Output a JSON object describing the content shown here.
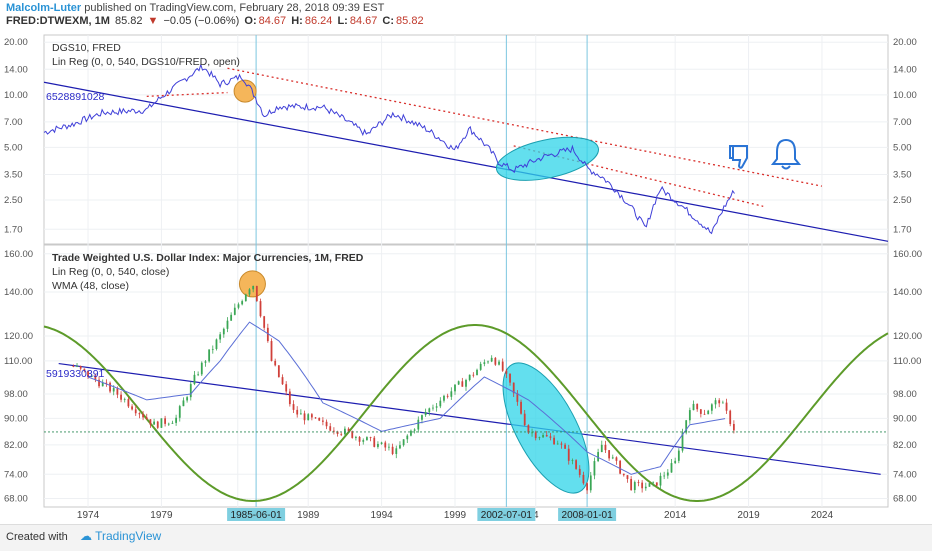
{
  "header": {
    "author": "Malcolm-Luter",
    "published": "published on TradingView.com, February 28, 2018 09:39 EST"
  },
  "ohlc": {
    "symbol": "FRED:DTWEXM, 1M",
    "last": "85.82",
    "change_arrow": "▼",
    "change": "−0.05 (−0.06%)",
    "o_label": "O:",
    "o": "84.67",
    "h_label": "H:",
    "h": "86.24",
    "l_label": "L:",
    "l": "84.67",
    "c_label": "C:",
    "c": "85.82"
  },
  "top_pane": {
    "indicators": [
      "DGS10, FRED",
      "Lin Reg (0, 0, 540, DGS10/FRED, open)"
    ],
    "lin_reg_value": "6528891028",
    "y_ticks": [
      "20.00",
      "14.00",
      "10.00",
      "7.00",
      "5.00",
      "3.50",
      "2.50",
      "1.70"
    ]
  },
  "bottom_pane": {
    "indicators": [
      "Trade Weighted U.S. Dollar Index: Major Currencies, 1M, FRED",
      "Lin Reg (0, 0, 540, close)",
      "WMA (48, close)"
    ],
    "lin_reg_value": "5919330391",
    "y_ticks": [
      "160.00",
      "140.00",
      "120.00",
      "110.00",
      "98.00",
      "90.00",
      "82.00",
      "74.00",
      "68.00"
    ]
  },
  "x_axis": {
    "ticks": [
      "1974",
      "1979",
      "1",
      "1989",
      "1994",
      "1999",
      "4",
      "2014",
      "2019",
      "2024"
    ],
    "highlights": [
      "1985-06-01",
      "2002-07-01",
      "2008-01-01"
    ]
  },
  "footer": {
    "made": "Created with",
    "brand": "TradingView"
  },
  "colors": {
    "price": "#3f3fd8",
    "regression": "#1d1db0",
    "sine": "#5d9b2a",
    "trend_dotted": "#d9302c",
    "ellipse_cyan": "#2fd4e8",
    "circle_orange": "#f5b65a",
    "vline": "#7cc6e0",
    "highlight_bg": "#7fcfe0"
  },
  "chart_data": [
    {
      "type": "line",
      "title": "DGS10, FRED",
      "scale": "log",
      "ylim": [
        1.4,
        22
      ],
      "x": [
        1971,
        1973,
        1975,
        1978,
        1980,
        1981.8,
        1983,
        1984.5,
        1986,
        1987,
        1990,
        1993,
        1994.8,
        1997,
        1999,
        2000,
        2002,
        2003,
        2005,
        2007,
        2008,
        2009,
        2012,
        2013,
        2015,
        2016.5,
        2017.5,
        2018.1
      ],
      "values": [
        6.1,
        6.8,
        7.9,
        8.2,
        11.2,
        14.5,
        11.5,
        12.8,
        7.6,
        8.6,
        8.5,
        5.9,
        7.8,
        6.4,
        4.8,
        6.4,
        4.1,
        3.7,
        4.4,
        4.9,
        3.8,
        3.4,
        1.7,
        2.9,
        2.1,
        1.6,
        2.4,
        2.87
      ]
    },
    {
      "type": "line",
      "title": "Trade Weighted U.S. Dollar Index: Major Currencies, 1M, FRED",
      "scale": "log",
      "ylim": [
        66,
        165
      ],
      "x": [
        1973,
        1976,
        1978.5,
        1980,
        1981.5,
        1983,
        1985.2,
        1986.5,
        1988,
        1990,
        1992,
        1995,
        1997,
        2000,
        2001.5,
        2002.3,
        2004,
        2006,
        2008,
        2009,
        2011,
        2012.5,
        2014,
        2015,
        2016,
        2017,
        2018.1
      ],
      "values": [
        108,
        98,
        88,
        90,
        106,
        120,
        145,
        110,
        92,
        88,
        85,
        80,
        92,
        104,
        112,
        106,
        86,
        83,
        71,
        82,
        71,
        71,
        77,
        94,
        92,
        96,
        86
      ],
      "series": [
        {
          "name": "WMA (48, close)",
          "x": [
            1974,
            1978,
            1981,
            1983,
            1985,
            1987,
            1990,
            1994,
            1998,
            2001,
            2004,
            2008,
            2011,
            2013,
            2015,
            2017.5
          ],
          "values": [
            104,
            96,
            98,
            110,
            126,
            118,
            95,
            86,
            90,
            104,
            96,
            80,
            74,
            76,
            88,
            90
          ]
        }
      ]
    }
  ]
}
